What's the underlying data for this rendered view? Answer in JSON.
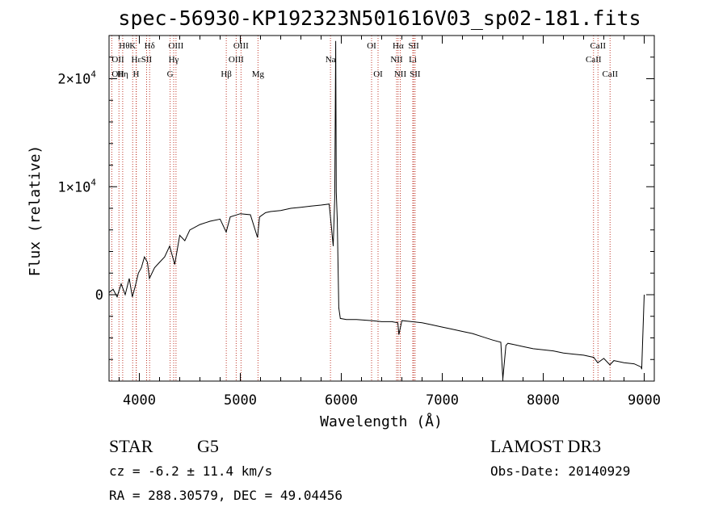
{
  "chart_data": {
    "type": "line",
    "title": "spec-56930-KP192323N501616V03_sp02-181.fits",
    "xlabel": "Wavelength (Å)",
    "ylabel": "Flux (relative)",
    "xlim": [
      3700,
      9100
    ],
    "ylim": [
      -8000,
      24000
    ],
    "xticks": [
      4000,
      5000,
      6000,
      7000,
      8000,
      9000
    ],
    "yticks": [
      {
        "value": 0,
        "label": "0"
      },
      {
        "value": 10000,
        "label": "1×10",
        "exp": "4"
      },
      {
        "value": 20000,
        "label": "2×10",
        "exp": "4"
      }
    ],
    "grid": false,
    "series": [
      {
        "name": "flux",
        "x": [
          3700,
          3740,
          3780,
          3820,
          3860,
          3900,
          3930,
          3960,
          3990,
          4020,
          4050,
          4080,
          4100,
          4150,
          4200,
          4250,
          4300,
          4350,
          4400,
          4450,
          4500,
          4600,
          4700,
          4800,
          4860,
          4900,
          5000,
          5100,
          5170,
          5190,
          5250,
          5300,
          5400,
          5500,
          5600,
          5700,
          5800,
          5880,
          5900,
          5920,
          5935,
          5945,
          5950,
          5960,
          5975,
          5990,
          6050,
          6150,
          6300,
          6400,
          6500,
          6560,
          6570,
          6600,
          6700,
          6800,
          6900,
          7000,
          7100,
          7200,
          7300,
          7400,
          7500,
          7580,
          7600,
          7630,
          7650,
          7700,
          7800,
          7900,
          8000,
          8100,
          8200,
          8300,
          8400,
          8500,
          8540,
          8600,
          8660,
          8700,
          8800,
          8900,
          8970,
          8975,
          9000
        ],
        "y": [
          200,
          500,
          -200,
          1000,
          0,
          1500,
          -200,
          800,
          2000,
          2500,
          3500,
          3000,
          1500,
          2500,
          3000,
          3500,
          4500,
          2800,
          5500,
          5000,
          6000,
          6500,
          6800,
          7000,
          5800,
          7200,
          7500,
          7400,
          5300,
          7200,
          7600,
          7700,
          7800,
          8000,
          8100,
          8200,
          8300,
          8400,
          6500,
          4500,
          9000,
          23500,
          9500,
          7000,
          -1200,
          -2200,
          -2300,
          -2300,
          -2400,
          -2500,
          -2500,
          -2600,
          -3700,
          -2400,
          -2500,
          -2600,
          -2800,
          -3000,
          -3200,
          -3400,
          -3600,
          -3900,
          -4200,
          -4400,
          -7800,
          -4700,
          -4500,
          -4600,
          -4800,
          -5000,
          -5100,
          -5200,
          -5400,
          -5500,
          -5600,
          -5800,
          -6300,
          -5900,
          -6500,
          -6100,
          -6300,
          -6400,
          -6700,
          -6900,
          0
        ]
      }
    ],
    "lines": [
      {
        "name": "Hθ",
        "wave": 3798,
        "row": 0,
        "anchor": "start"
      },
      {
        "name": "OII",
        "wave": 3727,
        "row": 1,
        "anchor": "start"
      },
      {
        "name": "OII",
        "wave": 3727,
        "row": 2,
        "anchor": "start"
      },
      {
        "name": "K",
        "wave": 3934,
        "row": 0,
        "anchor": "middle"
      },
      {
        "name": "Hε",
        "wave": 3970,
        "row": 1,
        "anchor": "middle"
      },
      {
        "name": "Hη",
        "wave": 3835,
        "row": 2,
        "anchor": "middle"
      },
      {
        "name": "H",
        "wave": 3968,
        "row": 2,
        "anchor": "middle"
      },
      {
        "name": "SII",
        "wave": 4072,
        "row": 1,
        "anchor": "middle"
      },
      {
        "name": "Hδ",
        "wave": 4102,
        "row": 0,
        "anchor": "middle"
      },
      {
        "name": "OIII",
        "wave": 4363,
        "row": 0,
        "anchor": "middle"
      },
      {
        "name": "Hγ",
        "wave": 4340,
        "row": 1,
        "anchor": "middle"
      },
      {
        "name": "G",
        "wave": 4305,
        "row": 2,
        "anchor": "middle"
      },
      {
        "name": "Hβ",
        "wave": 4861,
        "row": 2,
        "anchor": "middle"
      },
      {
        "name": "OIII",
        "wave": 5007,
        "row": 0,
        "anchor": "middle"
      },
      {
        "name": "OIII",
        "wave": 4959,
        "row": 1,
        "anchor": "middle"
      },
      {
        "name": "Mg",
        "wave": 5175,
        "row": 2,
        "anchor": "middle"
      },
      {
        "name": "Na",
        "wave": 5893,
        "row": 1,
        "anchor": "middle"
      },
      {
        "name": "OI",
        "wave": 6300,
        "row": 0,
        "anchor": "middle"
      },
      {
        "name": "OI",
        "wave": 6364,
        "row": 2,
        "anchor": "middle"
      },
      {
        "name": "Hα",
        "wave": 6563,
        "row": 0,
        "anchor": "middle"
      },
      {
        "name": "NII",
        "wave": 6548,
        "row": 1,
        "anchor": "middle"
      },
      {
        "name": "NII",
        "wave": 6584,
        "row": 2,
        "anchor": "middle"
      },
      {
        "name": "SII",
        "wave": 6717,
        "row": 0,
        "anchor": "middle"
      },
      {
        "name": "Li",
        "wave": 6708,
        "row": 1,
        "anchor": "middle"
      },
      {
        "name": "SII",
        "wave": 6731,
        "row": 2,
        "anchor": "middle"
      },
      {
        "name": "CaII",
        "wave": 8542,
        "row": 0,
        "anchor": "middle"
      },
      {
        "name": "CaII",
        "wave": 8498,
        "row": 1,
        "anchor": "middle"
      },
      {
        "name": "CaII",
        "wave": 8662,
        "row": 2,
        "anchor": "middle"
      }
    ]
  },
  "info": {
    "object_class": "STAR",
    "subclass": "G5",
    "survey": "LAMOST DR3",
    "redshift": "cz = -6.2 ± 11.4 km/s",
    "obs_date": "Obs-Date: 20140929",
    "coords": "RA = 288.30579, DEC =  49.04456"
  },
  "colors": {
    "spectrum": "#000000",
    "line_marker": "#c0392b",
    "axis": "#000000"
  }
}
